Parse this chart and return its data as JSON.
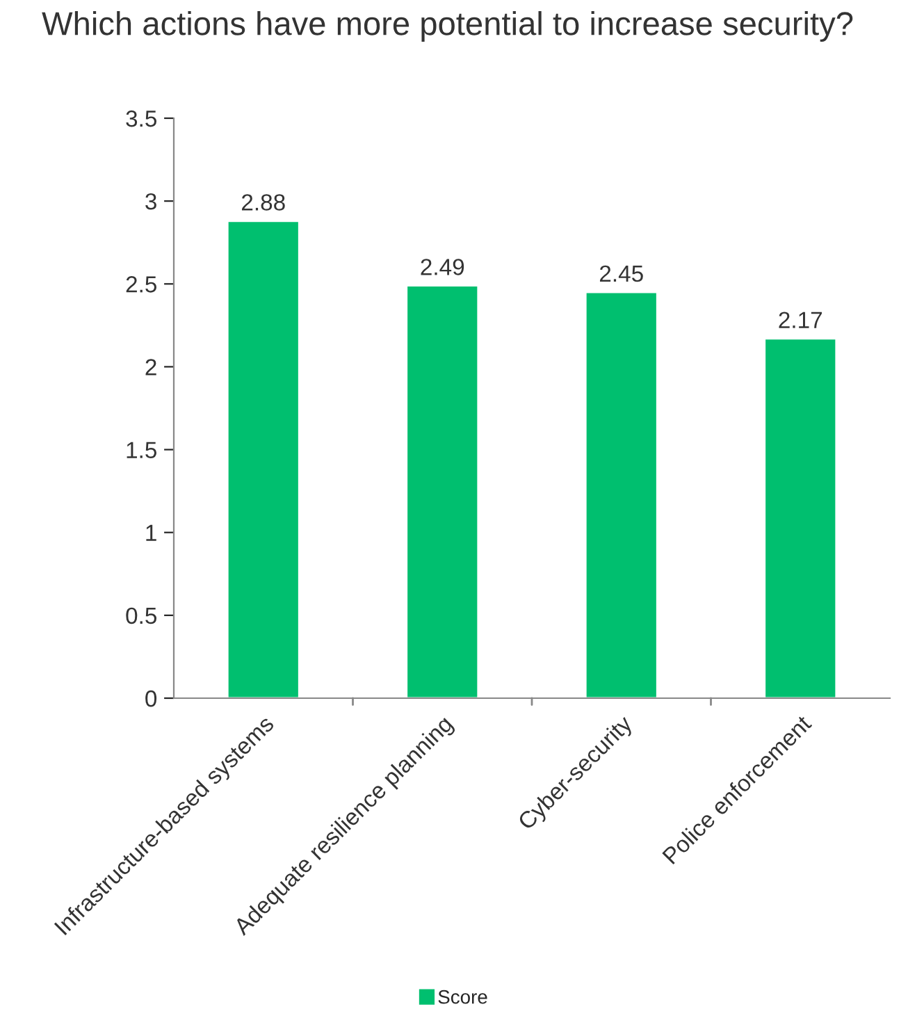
{
  "chart_data": {
    "type": "bar",
    "title": "Which actions have more potential to increase security?",
    "categories": [
      "Infrastructure-based systems",
      "Adequate resilience planning",
      "Cyber-security",
      "Police enforcement"
    ],
    "series": [
      {
        "name": "Score",
        "color": "#00bf6f",
        "values": [
          2.88,
          2.49,
          2.45,
          2.17
        ]
      }
    ],
    "ylim": [
      0,
      3.5
    ],
    "yticks": [
      0,
      {
        "value": 0.5,
        "label": "0.5"
      },
      1,
      {
        "value": 1.5,
        "label": "1.5"
      },
      2,
      {
        "value": 2.5,
        "label": "2.5"
      },
      3,
      {
        "value": 3.5,
        "label": "3.5"
      }
    ],
    "data_labels": true,
    "grid": false,
    "legend": "bottom"
  }
}
